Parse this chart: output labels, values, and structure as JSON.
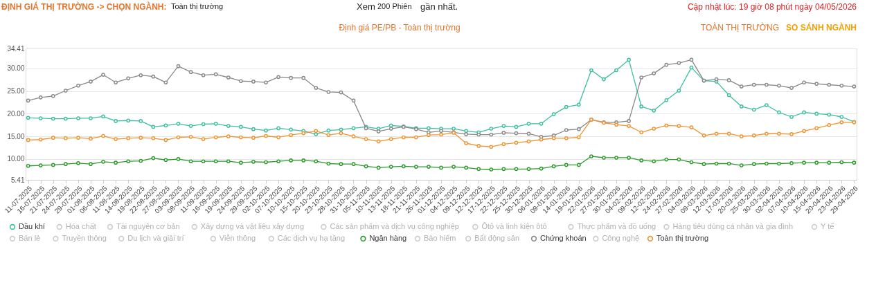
{
  "chart_data": {
    "type": "line",
    "title": "Định giá PE/PB - Toàn thị trường",
    "annotations": [
      "ĐỊNH GIÁ THỊ TRƯỜNG -> CHỌN NGÀNH:",
      "Toàn thị trường",
      "Xem",
      "200 Phiên",
      "gần nhất.",
      "Cập nhật lúc: 19 giờ 08 phút ngày 04/05/2026",
      "TOÀN THỊ TRƯỜNG",
      "SO SÁNH NGÀNH"
    ],
    "categories": [
      "11-07-2025",
      "16-07-2025",
      "21-07-2025",
      "24-07-2025",
      "29-07-2025",
      "01-08-2025",
      "06-08-2025",
      "11-08-2025",
      "14-08-2025",
      "19-08-2025",
      "22-08-2025",
      "27-08-2025",
      "03-09-2025",
      "08-09-2025",
      "11-09-2025",
      "16-09-2025",
      "19-09-2025",
      "24-09-2025",
      "29-09-2025",
      "02-10-2025",
      "07-10-2025",
      "10-10-2025",
      "15-10-2025",
      "20-10-2025",
      "23-10-2025",
      "28-10-2025",
      "31-10-2025",
      "05-11-2025",
      "10-11-2025",
      "13-11-2025",
      "18-11-2025",
      "21-11-2025",
      "26-11-2025",
      "01-12-2025",
      "04-12-2025",
      "09-12-2025",
      "12-12-2025",
      "17-12-2025",
      "22-12-2025",
      "25-12-2025",
      "30-12-2025",
      "06-01-2026",
      "09-01-2026",
      "14-01-2026",
      "19-01-2026",
      "22-01-2026",
      "27-01-2026",
      "30-01-2026",
      "04-02-2026",
      "09-02-2026",
      "12-02-2026",
      "24-02-2026",
      "27-02-2026",
      "04-03-2026",
      "09-03-2026",
      "12-03-2026",
      "17-03-2026",
      "20-03-2026",
      "25-03-2026",
      "30-03-2026",
      "02-04-2026",
      "07-04-2026",
      "10-04-2026",
      "15-04-2026",
      "20-04-2026",
      "23-04-2026",
      "29-04-2026"
    ],
    "series": [
      {
        "name": "Dầu khí",
        "color": "#3cbf9f",
        "values": [
          19.1,
          19.0,
          18.9,
          18.9,
          19.0,
          19.0,
          19.4,
          18.4,
          18.5,
          18.4,
          17.1,
          17.4,
          17.8,
          17.3,
          17.7,
          17.8,
          17.3,
          17.1,
          16.6,
          16.3,
          16.8,
          16.5,
          16.2,
          15.5,
          16.3,
          16.5,
          16.8,
          17.1,
          16.7,
          17.4,
          17.2,
          16.8,
          16.8,
          16.7,
          16.7,
          16.2,
          15.9,
          16.7,
          17.3,
          17.1,
          17.8,
          17.8,
          19.9,
          21.5,
          22.0,
          29.6,
          27.6,
          29.6,
          31.9,
          21.6,
          20.7,
          23.0,
          25.1,
          30.2,
          27.3,
          27.1,
          24.1,
          21.6,
          20.9,
          21.9,
          20.3,
          19.3,
          20.3,
          20.0,
          19.8,
          19.3,
          18.2
        ]
      },
      {
        "name": "Hóa chất",
        "color": "#cccccc",
        "values": [
          null,
          null,
          null,
          null,
          null,
          null,
          null,
          null,
          null,
          null,
          null,
          null,
          null,
          null,
          null,
          null,
          null,
          null,
          null,
          null,
          null,
          null,
          null,
          null,
          null,
          null,
          null,
          null,
          null,
          null,
          null,
          null,
          null,
          null,
          null,
          null,
          null,
          null,
          null,
          null,
          null,
          null,
          null,
          null,
          null,
          null,
          null,
          null,
          null,
          null,
          null,
          null,
          null,
          null,
          null,
          null,
          null,
          null,
          null,
          null,
          null,
          null,
          null,
          null,
          null,
          null,
          null
        ]
      },
      {
        "name": "Tài nguyên cơ bản",
        "color": "#cccccc",
        "values": [
          null,
          null,
          null,
          null,
          null,
          null,
          null,
          null,
          null,
          null,
          null,
          null,
          null,
          null,
          null,
          null,
          null,
          null,
          null,
          null,
          null,
          null,
          null,
          null,
          null,
          null,
          null,
          null,
          null,
          null,
          null,
          null,
          null,
          null,
          null,
          null,
          null,
          null,
          null,
          null,
          null,
          null,
          null,
          null,
          null,
          null,
          null,
          null,
          null,
          null,
          null,
          null,
          null,
          null,
          null,
          null,
          null,
          null,
          null,
          null,
          null,
          null,
          null,
          null,
          null,
          null,
          null
        ]
      },
      {
        "name": "Xây dựng và vật liệu xây dựng",
        "color": "#cccccc",
        "values": [
          null,
          null,
          null,
          null,
          null,
          null,
          null,
          null,
          null,
          null,
          null,
          null,
          null,
          null,
          null,
          null,
          null,
          null,
          null,
          null,
          null,
          null,
          null,
          null,
          null,
          null,
          null,
          null,
          null,
          null,
          null,
          null,
          null,
          null,
          null,
          null,
          null,
          null,
          null,
          null,
          null,
          null,
          null,
          null,
          null,
          null,
          null,
          null,
          null,
          null,
          null,
          null,
          null,
          null,
          null,
          null,
          null,
          null,
          null,
          null,
          null,
          null,
          null,
          null,
          null,
          null,
          null
        ]
      },
      {
        "name": "Các sản phẩm và dịch vụ công nghiệp",
        "color": "#cccccc",
        "values": [
          null,
          null,
          null,
          null,
          null,
          null,
          null,
          null,
          null,
          null,
          null,
          null,
          null,
          null,
          null,
          null,
          null,
          null,
          null,
          null,
          null,
          null,
          null,
          null,
          null,
          null,
          null,
          null,
          null,
          null,
          null,
          null,
          null,
          null,
          null,
          null,
          null,
          null,
          null,
          null,
          null,
          null,
          null,
          null,
          null,
          null,
          null,
          null,
          null,
          null,
          null,
          null,
          null,
          null,
          null,
          null,
          null,
          null,
          null,
          null,
          null,
          null,
          null,
          null,
          null,
          null,
          null
        ]
      },
      {
        "name": "Ôtô và linh kiện ôtô",
        "color": "#cccccc",
        "values": [
          null,
          null,
          null,
          null,
          null,
          null,
          null,
          null,
          null,
          null,
          null,
          null,
          null,
          null,
          null,
          null,
          null,
          null,
          null,
          null,
          null,
          null,
          null,
          null,
          null,
          null,
          null,
          null,
          null,
          null,
          null,
          null,
          null,
          null,
          null,
          null,
          null,
          null,
          null,
          null,
          null,
          null,
          null,
          null,
          null,
          null,
          null,
          null,
          null,
          null,
          null,
          null,
          null,
          null,
          null,
          null,
          null,
          null,
          null,
          null,
          null,
          null,
          null,
          null,
          null,
          null,
          null
        ]
      },
      {
        "name": "Thực phẩm và đồ uống",
        "color": "#cccccc",
        "values": [
          null,
          null,
          null,
          null,
          null,
          null,
          null,
          null,
          null,
          null,
          null,
          null,
          null,
          null,
          null,
          null,
          null,
          null,
          null,
          null,
          null,
          null,
          null,
          null,
          null,
          null,
          null,
          null,
          null,
          null,
          null,
          null,
          null,
          null,
          null,
          null,
          null,
          null,
          null,
          null,
          null,
          null,
          null,
          null,
          null,
          null,
          null,
          null,
          null,
          null,
          null,
          null,
          null,
          null,
          null,
          null,
          null,
          null,
          null,
          null,
          null,
          null,
          null,
          null,
          null,
          null,
          null
        ]
      },
      {
        "name": "Hàng tiêu dùng cá nhân và gia đình",
        "color": "#cccccc",
        "values": [
          null,
          null,
          null,
          null,
          null,
          null,
          null,
          null,
          null,
          null,
          null,
          null,
          null,
          null,
          null,
          null,
          null,
          null,
          null,
          null,
          null,
          null,
          null,
          null,
          null,
          null,
          null,
          null,
          null,
          null,
          null,
          null,
          null,
          null,
          null,
          null,
          null,
          null,
          null,
          null,
          null,
          null,
          null,
          null,
          null,
          null,
          null,
          null,
          null,
          null,
          null,
          null,
          null,
          null,
          null,
          null,
          null,
          null,
          null,
          null,
          null,
          null,
          null,
          null,
          null,
          null,
          null
        ]
      },
      {
        "name": "Y tế",
        "color": "#cccccc",
        "values": [
          null,
          null,
          null,
          null,
          null,
          null,
          null,
          null,
          null,
          null,
          null,
          null,
          null,
          null,
          null,
          null,
          null,
          null,
          null,
          null,
          null,
          null,
          null,
          null,
          null,
          null,
          null,
          null,
          null,
          null,
          null,
          null,
          null,
          null,
          null,
          null,
          null,
          null,
          null,
          null,
          null,
          null,
          null,
          null,
          null,
          null,
          null,
          null,
          null,
          null,
          null,
          null,
          null,
          null,
          null,
          null,
          null,
          null,
          null,
          null,
          null,
          null,
          null,
          null,
          null,
          null,
          null
        ]
      },
      {
        "name": "Bán lẻ",
        "color": "#cccccc",
        "values": [
          null,
          null,
          null,
          null,
          null,
          null,
          null,
          null,
          null,
          null,
          null,
          null,
          null,
          null,
          null,
          null,
          null,
          null,
          null,
          null,
          null,
          null,
          null,
          null,
          null,
          null,
          null,
          null,
          null,
          null,
          null,
          null,
          null,
          null,
          null,
          null,
          null,
          null,
          null,
          null,
          null,
          null,
          null,
          null,
          null,
          null,
          null,
          null,
          null,
          null,
          null,
          null,
          null,
          null,
          null,
          null,
          null,
          null,
          null,
          null,
          null,
          null,
          null,
          null,
          null,
          null,
          null
        ]
      },
      {
        "name": "Truyền thông",
        "color": "#cccccc",
        "values": [
          null,
          null,
          null,
          null,
          null,
          null,
          null,
          null,
          null,
          null,
          null,
          null,
          null,
          null,
          null,
          null,
          null,
          null,
          null,
          null,
          null,
          null,
          null,
          null,
          null,
          null,
          null,
          null,
          null,
          null,
          null,
          null,
          null,
          null,
          null,
          null,
          null,
          null,
          null,
          null,
          null,
          null,
          null,
          null,
          null,
          null,
          null,
          null,
          null,
          null,
          null,
          null,
          null,
          null,
          null,
          null,
          null,
          null,
          null,
          null,
          null,
          null,
          null,
          null,
          null,
          null,
          null
        ]
      },
      {
        "name": "Du lịch và giải trí",
        "color": "#cccccc",
        "values": [
          null,
          null,
          null,
          null,
          null,
          null,
          null,
          null,
          null,
          null,
          null,
          null,
          null,
          null,
          null,
          null,
          null,
          null,
          null,
          null,
          null,
          null,
          null,
          null,
          null,
          null,
          null,
          null,
          null,
          null,
          null,
          null,
          null,
          null,
          null,
          null,
          null,
          null,
          null,
          null,
          null,
          null,
          null,
          null,
          null,
          null,
          null,
          null,
          null,
          null,
          null,
          null,
          null,
          null,
          null,
          null,
          null,
          null,
          null,
          null,
          null,
          null,
          null,
          null,
          null,
          null,
          null
        ]
      },
      {
        "name": "Viễn thông",
        "color": "#cccccc",
        "values": [
          null,
          null,
          null,
          null,
          null,
          null,
          null,
          null,
          null,
          null,
          null,
          null,
          null,
          null,
          null,
          null,
          null,
          null,
          null,
          null,
          null,
          null,
          null,
          null,
          null,
          null,
          null,
          null,
          null,
          null,
          null,
          null,
          null,
          null,
          null,
          null,
          null,
          null,
          null,
          null,
          null,
          null,
          null,
          null,
          null,
          null,
          null,
          null,
          null,
          null,
          null,
          null,
          null,
          null,
          null,
          null,
          null,
          null,
          null,
          null,
          null,
          null,
          null,
          null,
          null,
          null,
          null
        ]
      },
      {
        "name": "Các dịch vụ hạ tầng",
        "color": "#cccccc",
        "values": [
          null,
          null,
          null,
          null,
          null,
          null,
          null,
          null,
          null,
          null,
          null,
          null,
          null,
          null,
          null,
          null,
          null,
          null,
          null,
          null,
          null,
          null,
          null,
          null,
          null,
          null,
          null,
          null,
          null,
          null,
          null,
          null,
          null,
          null,
          null,
          null,
          null,
          null,
          null,
          null,
          null,
          null,
          null,
          null,
          null,
          null,
          null,
          null,
          null,
          null,
          null,
          null,
          null,
          null,
          null,
          null,
          null,
          null,
          null,
          null,
          null,
          null,
          null,
          null,
          null,
          null,
          null
        ]
      },
      {
        "name": "Ngân hàng",
        "color": "#2a9a2a",
        "values": [
          8.5,
          8.6,
          8.7,
          8.9,
          9.1,
          8.9,
          9.4,
          9.2,
          9.5,
          9.6,
          10.2,
          9.8,
          10.0,
          9.5,
          9.5,
          9.5,
          9.5,
          9.2,
          9.4,
          9.3,
          9.5,
          9.7,
          9.7,
          9.5,
          9.0,
          8.9,
          8.9,
          8.4,
          8.1,
          8.3,
          8.4,
          8.3,
          8.3,
          8.1,
          8.3,
          8.1,
          7.8,
          7.7,
          7.8,
          7.8,
          7.8,
          7.9,
          8.4,
          8.7,
          8.7,
          10.6,
          10.3,
          10.3,
          10.3,
          9.7,
          9.5,
          9.9,
          9.9,
          9.3,
          8.9,
          9.0,
          9.0,
          8.6,
          8.9,
          9.0,
          9.0,
          9.1,
          9.2,
          9.2,
          9.2,
          9.3,
          9.2
        ]
      },
      {
        "name": "Bảo hiểm",
        "color": "#cccccc",
        "values": [
          null,
          null,
          null,
          null,
          null,
          null,
          null,
          null,
          null,
          null,
          null,
          null,
          null,
          null,
          null,
          null,
          null,
          null,
          null,
          null,
          null,
          null,
          null,
          null,
          null,
          null,
          null,
          null,
          null,
          null,
          null,
          null,
          null,
          null,
          null,
          null,
          null,
          null,
          null,
          null,
          null,
          null,
          null,
          null,
          null,
          null,
          null,
          null,
          null,
          null,
          null,
          null,
          null,
          null,
          null,
          null,
          null,
          null,
          null,
          null,
          null,
          null,
          null,
          null,
          null,
          null,
          null
        ]
      },
      {
        "name": "Bất động sản",
        "color": "#cccccc",
        "values": [
          null,
          null,
          null,
          null,
          null,
          null,
          null,
          null,
          null,
          null,
          null,
          null,
          null,
          null,
          null,
          null,
          null,
          null,
          null,
          null,
          null,
          null,
          null,
          null,
          null,
          null,
          null,
          null,
          null,
          null,
          null,
          null,
          null,
          null,
          null,
          null,
          null,
          null,
          null,
          null,
          null,
          null,
          null,
          null,
          null,
          null,
          null,
          null,
          null,
          null,
          null,
          null,
          null,
          null,
          null,
          null,
          null,
          null,
          null,
          null,
          null,
          null,
          null,
          null,
          null,
          null,
          null
        ]
      },
      {
        "name": "Chứng khoán",
        "color": "#888888",
        "values": [
          22.9,
          23.6,
          23.9,
          25.1,
          26.2,
          27.1,
          28.6,
          26.9,
          27.8,
          28.5,
          28.2,
          26.9,
          30.5,
          29.2,
          28.5,
          28.7,
          28.0,
          27.2,
          27.1,
          26.9,
          28.1,
          27.9,
          27.9,
          25.7,
          24.8,
          24.7,
          22.9,
          16.8,
          16.1,
          16.7,
          17.1,
          16.6,
          15.9,
          16.2,
          15.9,
          15.5,
          15.4,
          15.4,
          15.8,
          15.7,
          15.6,
          14.9,
          15.2,
          16.4,
          16.6,
          18.7,
          18.1,
          18.1,
          18.4,
          28.0,
          28.9,
          30.8,
          31.2,
          31.9,
          27.3,
          27.6,
          27.4,
          26.0,
          26.4,
          26.4,
          26.2,
          25.7,
          26.9,
          26.6,
          26.4,
          26.2,
          26.0
        ]
      },
      {
        "name": "Công nghệ",
        "color": "#cccccc",
        "values": [
          null,
          null,
          null,
          null,
          null,
          null,
          null,
          null,
          null,
          null,
          null,
          null,
          null,
          null,
          null,
          null,
          null,
          null,
          null,
          null,
          null,
          null,
          null,
          null,
          null,
          null,
          null,
          null,
          null,
          null,
          null,
          null,
          null,
          null,
          null,
          null,
          null,
          null,
          null,
          null,
          null,
          null,
          null,
          null,
          null,
          null,
          null,
          null,
          null,
          null,
          null,
          null,
          null,
          null,
          null,
          null,
          null,
          null,
          null,
          null,
          null,
          null,
          null,
          null,
          null,
          null,
          null
        ]
      },
      {
        "name": "Toàn thị trường",
        "color": "#f39230",
        "values": [
          14.2,
          14.3,
          14.7,
          14.6,
          14.7,
          14.5,
          15.1,
          14.4,
          14.6,
          14.7,
          14.6,
          14.2,
          14.8,
          14.9,
          14.4,
          14.8,
          15.0,
          14.8,
          14.7,
          15.1,
          14.8,
          15.3,
          15.7,
          16.2,
          15.3,
          15.7,
          15.0,
          14.4,
          13.9,
          14.4,
          14.8,
          14.8,
          15.3,
          15.4,
          15.8,
          13.5,
          12.9,
          12.7,
          13.3,
          13.6,
          13.9,
          14.3,
          14.6,
          14.6,
          14.8,
          18.7,
          18.0,
          17.6,
          17.3,
          15.9,
          16.7,
          17.4,
          17.3,
          17.0,
          15.2,
          15.6,
          15.6,
          15.0,
          15.2,
          15.6,
          15.6,
          15.5,
          16.2,
          16.8,
          17.5,
          18.1,
          18.1
        ]
      }
    ],
    "ylim": [
      5.41,
      34.41
    ],
    "yticks": [
      5.41,
      {
        "value": 10,
        "label": "10.00"
      },
      {
        "value": 15,
        "label": "15.00"
      },
      {
        "value": 20,
        "label": "20.00"
      },
      {
        "value": 25,
        "label": "25.00"
      },
      {
        "value": 30,
        "label": "30.00"
      },
      34.41
    ],
    "grid": "y",
    "legend": "bottom",
    "marker": "circle",
    "line_style": "solid"
  }
}
